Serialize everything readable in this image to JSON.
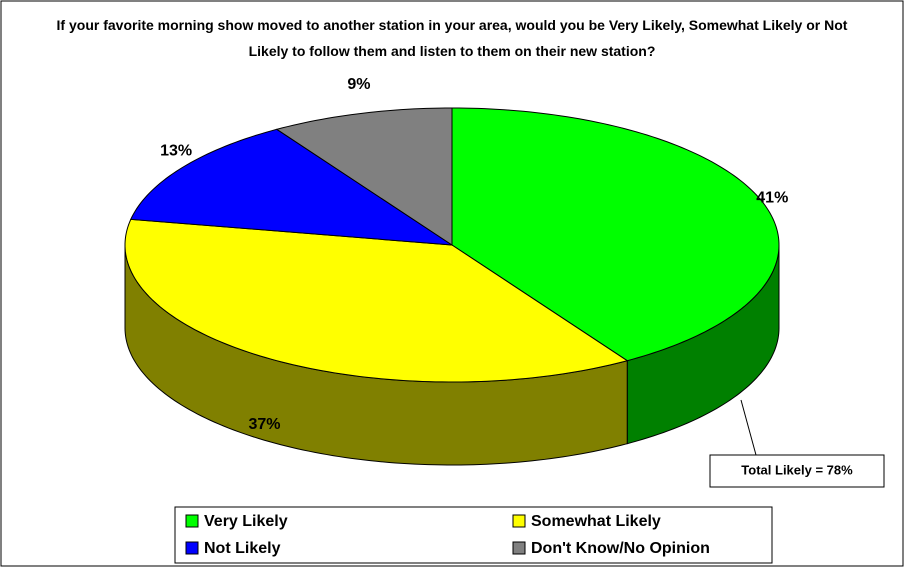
{
  "chart_data": {
    "type": "pie3d",
    "title": "If your favorite morning show moved to another station in your area, would you be Very Likely, Somewhat Likely or Not Likely to follow them and listen to them on their new station?",
    "categories": [
      "Very Likely",
      "Somewhat Likely",
      "Not Likely",
      "Don't Know/No Opinion"
    ],
    "values": [
      41,
      37,
      13,
      9
    ],
    "value_labels": [
      "41%",
      "37%",
      "13%",
      "9%"
    ],
    "colors": [
      "#00ff00",
      "#ffff00",
      "#0000ff",
      "#808080"
    ],
    "side_colors": [
      "#008000",
      "#808000",
      "#000080",
      "#404040"
    ],
    "annotations": [
      "Total Likely = 78%"
    ],
    "legend": "bottom"
  }
}
